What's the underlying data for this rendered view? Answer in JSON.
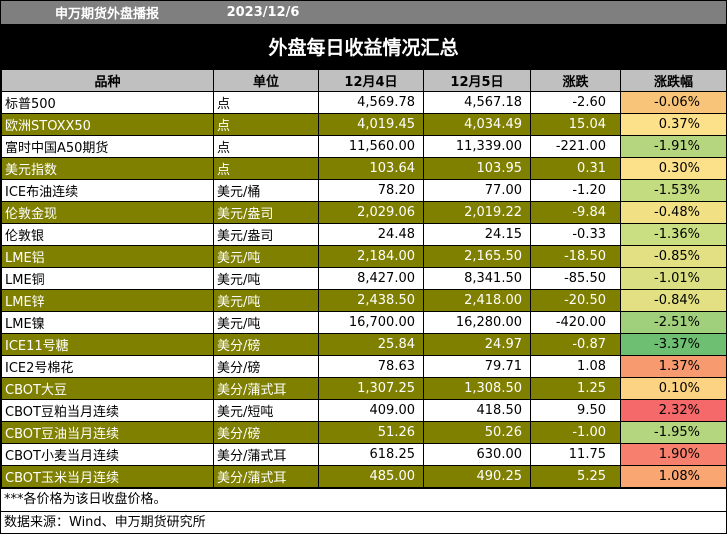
{
  "header": {
    "brand": "申万期货外盘播报",
    "date": "2023/12/6"
  },
  "title": "外盘每日收益情况汇总",
  "columns": [
    "品种",
    "单位",
    "12月4日",
    "12月5日",
    "涨跌",
    "涨跌幅"
  ],
  "rows": [
    {
      "name": "标普500",
      "unit": "点",
      "d1": "4,569.78",
      "d2": "4,567.18",
      "chg": "-2.60",
      "pct": "-0.06%",
      "color": "#f8c47a"
    },
    {
      "name": "欧洲STOXX50",
      "unit": "点",
      "d1": "4,019.45",
      "d2": "4,034.49",
      "chg": "15.04",
      "pct": "0.37%",
      "color": "#fde08a"
    },
    {
      "name": "富时中国A50期货",
      "unit": "点",
      "d1": "11,560.00",
      "d2": "11,339.00",
      "chg": "-221.00",
      "pct": "-1.91%",
      "color": "#b5d67e"
    },
    {
      "name": "美元指数",
      "unit": "点",
      "d1": "103.64",
      "d2": "103.95",
      "chg": "0.31",
      "pct": "0.30%",
      "color": "#fde08a"
    },
    {
      "name": "ICE布油连续",
      "unit": "美元/桶",
      "d1": "78.20",
      "d2": "77.00",
      "chg": "-1.20",
      "pct": "-1.53%",
      "color": "#c4dc80"
    },
    {
      "name": "伦敦金现",
      "unit": "美元/盎司",
      "d1": "2,029.06",
      "d2": "2,019.22",
      "chg": "-9.84",
      "pct": "-0.48%",
      "color": "#f2e184"
    },
    {
      "name": "伦敦银",
      "unit": "美元/盎司",
      "d1": "24.48",
      "d2": "24.15",
      "chg": "-0.33",
      "pct": "-1.36%",
      "color": "#c9df81"
    },
    {
      "name": "LME铝",
      "unit": "美元/吨",
      "d1": "2,184.00",
      "d2": "2,165.50",
      "chg": "-18.50",
      "pct": "-0.85%",
      "color": "#e2e083"
    },
    {
      "name": "LME铜",
      "unit": "美元/吨",
      "d1": "8,427.00",
      "d2": "8,341.50",
      "chg": "-85.50",
      "pct": "-1.01%",
      "color": "#d9df82"
    },
    {
      "name": "LME锌",
      "unit": "美元/吨",
      "d1": "2,438.50",
      "d2": "2,418.00",
      "chg": "-20.50",
      "pct": "-0.84%",
      "color": "#e2e083"
    },
    {
      "name": "LME镍",
      "unit": "美元/吨",
      "d1": "16,700.00",
      "d2": "16,280.00",
      "chg": "-420.00",
      "pct": "-2.51%",
      "color": "#a0d07c"
    },
    {
      "name": "ICE11号糖",
      "unit": "美分/磅",
      "d1": "25.84",
      "d2": "24.97",
      "chg": "-0.87",
      "pct": "-3.37%",
      "color": "#6fbf72"
    },
    {
      "name": "ICE2号棉花",
      "unit": "美分/磅",
      "d1": "78.63",
      "d2": "79.71",
      "chg": "1.08",
      "pct": "1.37%",
      "color": "#f89a6f"
    },
    {
      "name": "CBOT大豆",
      "unit": "美分/蒲式耳",
      "d1": "1,307.25",
      "d2": "1,308.50",
      "chg": "1.25",
      "pct": "0.10%",
      "color": "#fcd383"
    },
    {
      "name": "CBOT豆粕当月连续",
      "unit": "美元/短吨",
      "d1": "409.00",
      "d2": "418.50",
      "chg": "9.50",
      "pct": "2.32%",
      "color": "#f6696b"
    },
    {
      "name": "CBOT豆油当月连续",
      "unit": "美分/磅",
      "d1": "51.26",
      "d2": "50.26",
      "chg": "-1.00",
      "pct": "-1.95%",
      "color": "#b3d67e"
    },
    {
      "name": "CBOT小麦当月连续",
      "unit": "美分/蒲式耳",
      "d1": "618.25",
      "d2": "630.00",
      "chg": "11.75",
      "pct": "1.90%",
      "color": "#f77f6d"
    },
    {
      "name": "CBOT玉米当月连续",
      "unit": "美分/蒲式耳",
      "d1": "485.00",
      "d2": "490.25",
      "chg": "5.25",
      "pct": "1.08%",
      "color": "#f9a673"
    }
  ],
  "notes": [
    "***各价格为该日收盘价格。",
    "数据来源：Wind、申万期货研究所"
  ]
}
